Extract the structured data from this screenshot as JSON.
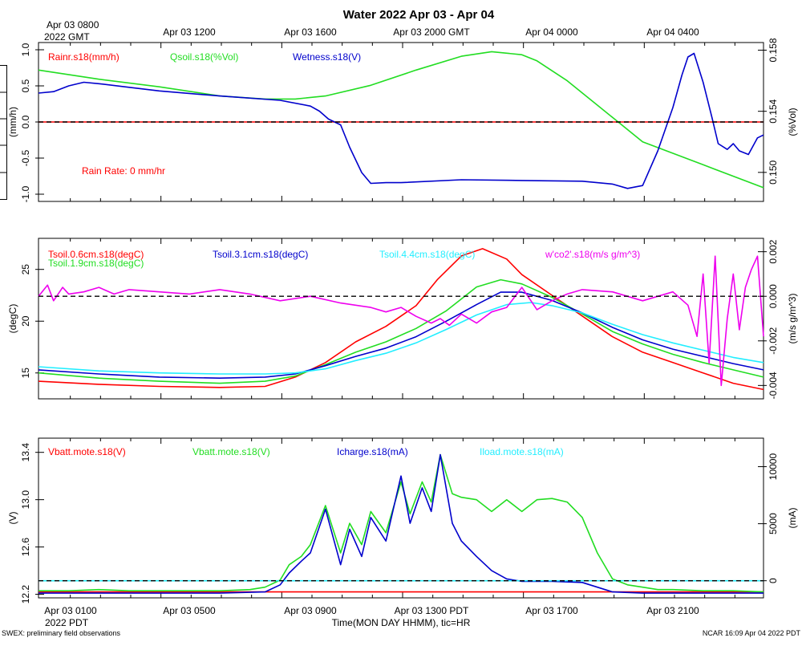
{
  "title": "Water 2022 Apr 03 - Apr 04",
  "top_axis": {
    "ticks": [
      "Apr 03 1200",
      "Apr 03 1600",
      "Apr 03 2000 GMT",
      "Apr 04 0000",
      "Apr 04 0400"
    ],
    "start_line1": "Apr 03 0800",
    "start_line2": "2022 GMT"
  },
  "bottom_axis": {
    "ticks": [
      "Apr 03 0500",
      "Apr 03 0900",
      "Apr 03 1300 PDT",
      "Apr 03 1700",
      "Apr 03 2100"
    ],
    "start_line1": "Apr 03 0100",
    "start_line2": "2022 PDT",
    "xlabel": "Time(MON DAY HHMM), tic=HR"
  },
  "footer": {
    "left": "SWEX: preliminary field observations",
    "right": "NCAR 16:09 Apr 04 2022 PDT"
  },
  "colors": {
    "red": "#ff0000",
    "green": "#22dd22",
    "blue": "#0000cc",
    "cyan": "#22eeff",
    "magenta": "#ee00ee"
  },
  "chart_data": [
    {
      "type": "line",
      "name": "rain-wetness-panel",
      "x_range_hours": [
        0,
        24
      ],
      "yleft": {
        "label": "(mm/h)",
        "range": [
          -1.1,
          1.1
        ],
        "ticks": [
          "1.0",
          "0.5",
          "0.0",
          "-0.5",
          "-1.0"
        ],
        "tick_values": [
          1.0,
          0.5,
          0.0,
          -0.5,
          -1.0
        ]
      },
      "yright": {
        "label": "(%Vol)",
        "range": [
          0.1481,
          0.1585
        ],
        "ticks": [
          "0.158",
          "0.154",
          "0.150"
        ],
        "tick_values": [
          0.158,
          0.154,
          0.15
        ]
      },
      "zero_line": 0,
      "annotation": "Rain Rate: 0 mm/hr",
      "series": [
        {
          "name": "Rainr.s18(mm/h)",
          "color": "red",
          "axis": "left",
          "x": [
            0,
            24
          ],
          "y": [
            0,
            0
          ]
        },
        {
          "name": "Qsoil.s18(%Vol)",
          "color": "green",
          "axis": "right",
          "x": [
            0,
            2,
            4,
            6,
            7.5,
            8.5,
            9.5,
            11,
            12.5,
            14,
            15,
            16,
            16.5,
            17.5,
            19,
            20,
            22,
            24
          ],
          "y": [
            0.1567,
            0.1561,
            0.1556,
            0.155,
            0.1548,
            0.1548,
            0.155,
            0.1557,
            0.1567,
            0.1576,
            0.1579,
            0.1577,
            0.1573,
            0.156,
            0.1536,
            0.152,
            0.1505,
            0.149
          ]
        },
        {
          "name": "Wetness.s18(V)",
          "color": "blue",
          "axis": "left",
          "x": [
            0,
            0.5,
            1,
            1.5,
            2,
            3,
            4,
            6,
            8,
            9,
            9.3,
            9.6,
            10,
            10.3,
            10.7,
            11,
            11.5,
            12,
            14,
            16,
            18,
            19,
            19.5,
            20,
            20.5,
            21,
            21.3,
            21.5,
            21.7,
            22,
            22.3,
            22.5,
            22.8,
            23,
            23.2,
            23.5,
            23.8,
            24
          ],
          "y": [
            0.4,
            0.42,
            0.5,
            0.55,
            0.53,
            0.48,
            0.43,
            0.36,
            0.3,
            0.22,
            0.15,
            0.04,
            -0.04,
            -0.35,
            -0.7,
            -0.85,
            -0.84,
            -0.84,
            -0.8,
            -0.81,
            -0.82,
            -0.86,
            -0.92,
            -0.88,
            -0.4,
            0.2,
            0.65,
            0.9,
            0.95,
            0.55,
            0.05,
            -0.3,
            -0.38,
            -0.3,
            -0.4,
            -0.45,
            -0.22,
            -0.18
          ]
        }
      ]
    },
    {
      "type": "line",
      "name": "soil-temperature-panel",
      "x_range_hours": [
        0,
        24
      ],
      "yleft": {
        "label": "(degC)",
        "range": [
          12.5,
          28.0
        ],
        "ticks": [
          "25",
          "20",
          "15"
        ],
        "tick_values": [
          25,
          20,
          15
        ]
      },
      "yright": {
        "label": "(m/s g/m^3)",
        "range": [
          -0.0046,
          0.0026
        ],
        "ticks": [
          "0.002",
          "0.000",
          "-0.002",
          "-0.004"
        ],
        "tick_values": [
          0.002,
          0.0,
          -0.002,
          -0.004
        ]
      },
      "zero_line": 0,
      "series": [
        {
          "name": "Tsoil.0.6cm.s18(degC)",
          "color": "red",
          "axis": "left",
          "x": [
            0,
            2,
            4,
            6,
            7.5,
            8.5,
            9.5,
            10.5,
            11.5,
            12.5,
            13.2,
            14,
            14.7,
            15.5,
            16,
            17,
            18,
            19,
            20,
            21,
            22,
            23,
            24
          ],
          "y": [
            14.2,
            13.9,
            13.7,
            13.6,
            13.7,
            14.6,
            16.0,
            18.0,
            19.5,
            21.5,
            24.0,
            26.3,
            27.0,
            26.0,
            24.5,
            22.5,
            20.5,
            18.5,
            17.0,
            16.0,
            15.0,
            14.0,
            13.4
          ]
        },
        {
          "name": "Tsoil.1.9cm.s18(degC)",
          "color": "green",
          "axis": "left",
          "x": [
            0,
            2,
            4,
            6,
            7.5,
            8.5,
            9.5,
            10.5,
            11.5,
            12.5,
            13.5,
            14.5,
            15.3,
            16,
            17,
            18,
            19,
            20,
            21,
            22,
            23,
            24
          ],
          "y": [
            15.0,
            14.5,
            14.2,
            14.0,
            14.2,
            14.7,
            15.8,
            17.0,
            18.0,
            19.3,
            21.0,
            23.3,
            24.0,
            23.6,
            22.3,
            20.7,
            19.0,
            17.8,
            16.8,
            16.0,
            15.3,
            14.6
          ]
        },
        {
          "name": "Tsoil.3.1cm.s18(degC)",
          "color": "blue",
          "axis": "left",
          "x": [
            0,
            2,
            4,
            6,
            7.5,
            8.5,
            9.5,
            10.5,
            11.5,
            12.5,
            13.5,
            14.5,
            15.3,
            16,
            17,
            18,
            19,
            20,
            21,
            22,
            23,
            24
          ],
          "y": [
            15.3,
            14.9,
            14.6,
            14.5,
            14.6,
            14.9,
            15.7,
            16.6,
            17.4,
            18.5,
            20.0,
            21.6,
            22.8,
            22.8,
            22.0,
            20.8,
            19.4,
            18.2,
            17.3,
            16.6,
            15.9,
            15.3
          ]
        },
        {
          "name": "Tsoil.4.4cm.s18(degC)",
          "color": "cyan",
          "axis": "left",
          "x": [
            0,
            2,
            4,
            6,
            7.5,
            8.5,
            9.5,
            10.5,
            11.5,
            12.5,
            13.5,
            14.5,
            15.5,
            16.3,
            17,
            18,
            19,
            20,
            21,
            22,
            23,
            24
          ],
          "y": [
            15.6,
            15.2,
            15.0,
            14.9,
            14.9,
            15.0,
            15.4,
            16.2,
            16.9,
            17.9,
            19.2,
            20.6,
            21.6,
            21.8,
            21.5,
            20.8,
            19.7,
            18.7,
            17.9,
            17.2,
            16.5,
            16.0
          ]
        },
        {
          "name": "w'co2'.s18(m/s g/m^3)",
          "color": "magenta",
          "axis": "right",
          "x": [
            0,
            0.3,
            0.5,
            0.8,
            1,
            1.5,
            2,
            2.5,
            3,
            4,
            5,
            6,
            7,
            8,
            9,
            10,
            11,
            11.5,
            12,
            12.5,
            13,
            13.3,
            13.6,
            14,
            14.5,
            15,
            15.5,
            16,
            16.5,
            17,
            17.5,
            18,
            19,
            20,
            21,
            21.5,
            21.8,
            22,
            22.2,
            22.4,
            22.6,
            22.8,
            23,
            23.2,
            23.4,
            23.6,
            23.8,
            24
          ],
          "y": [
            0.0,
            0.0005,
            -0.0002,
            0.0004,
            0.0001,
            0.0002,
            0.0004,
            0.0001,
            0.0003,
            0.0002,
            0.0001,
            0.0003,
            0.0001,
            -0.0002,
            0.0,
            -0.0003,
            -0.0005,
            -0.0007,
            -0.0005,
            -0.0009,
            -0.0012,
            -0.001,
            -0.0013,
            -0.0008,
            -0.0012,
            -0.0007,
            -0.0005,
            0.0004,
            -0.0006,
            -0.0002,
            0.0001,
            0.0003,
            0.0002,
            -0.0002,
            0.0002,
            -0.0004,
            -0.0018,
            0.001,
            -0.003,
            0.0018,
            -0.004,
            -0.001,
            0.001,
            -0.0015,
            0.0004,
            0.0012,
            0.0018,
            -0.0018
          ]
        }
      ]
    },
    {
      "type": "line",
      "name": "battery-power-panel",
      "x_range_hours": [
        0,
        24
      ],
      "yleft": {
        "label": "(V)",
        "range": [
          12.17,
          13.52
        ],
        "ticks": [
          "13.4",
          "13.0",
          "12.6",
          "12.2"
        ],
        "tick_values": [
          13.4,
          13.0,
          12.6,
          12.2
        ]
      },
      "yright": {
        "label": "(mA)",
        "range": [
          -1500,
          12500
        ],
        "ticks": [
          "10000",
          "5000",
          "0"
        ],
        "tick_values": [
          10000,
          5000,
          0
        ]
      },
      "zero_line": 0,
      "series": [
        {
          "name": "Vbatt.mote.s18(V)",
          "color": "red",
          "axis": "left",
          "x": [
            0,
            24
          ],
          "y": [
            12.22,
            12.22
          ]
        },
        {
          "name": "Vbatt.mote.s18(V)",
          "color": "green",
          "axis": "left",
          "x": [
            0,
            1,
            2,
            3,
            4,
            5,
            6,
            7,
            7.5,
            8,
            8.3,
            8.7,
            9,
            9.5,
            10,
            10.3,
            10.7,
            11,
            11.5,
            12,
            12.3,
            12.7,
            13,
            13.3,
            13.7,
            14,
            14.5,
            15,
            15.5,
            16,
            16.5,
            17,
            17.5,
            18,
            18.5,
            19,
            19.5,
            20,
            20.5,
            21,
            22,
            23,
            24
          ],
          "y": [
            12.23,
            12.23,
            12.24,
            12.23,
            12.23,
            12.23,
            12.23,
            12.24,
            12.26,
            12.32,
            12.45,
            12.52,
            12.62,
            12.95,
            12.55,
            12.8,
            12.62,
            12.9,
            12.72,
            13.15,
            12.88,
            13.15,
            12.98,
            13.38,
            13.05,
            13.02,
            13.0,
            12.9,
            13.0,
            12.9,
            13.0,
            13.01,
            12.98,
            12.85,
            12.55,
            12.33,
            12.28,
            12.26,
            12.24,
            12.24,
            12.23,
            12.23,
            12.22
          ]
        },
        {
          "name": "Icharge.s18(mA)",
          "color": "blue",
          "axis": "left",
          "x": [
            0,
            2,
            4,
            6,
            7.5,
            8,
            8.3,
            8.7,
            9,
            9.5,
            10,
            10.3,
            10.7,
            11,
            11.5,
            12,
            12.3,
            12.7,
            13,
            13.3,
            13.7,
            14,
            14.5,
            15,
            15.5,
            16,
            17,
            18,
            19,
            20,
            21,
            22,
            23,
            24
          ],
          "y": [
            12.21,
            12.21,
            12.21,
            12.21,
            12.22,
            12.28,
            12.38,
            12.48,
            12.55,
            12.92,
            12.45,
            12.75,
            12.52,
            12.85,
            12.65,
            13.2,
            12.8,
            13.1,
            12.9,
            13.38,
            12.8,
            12.65,
            12.52,
            12.4,
            12.33,
            12.31,
            12.31,
            12.3,
            12.22,
            12.21,
            12.21,
            12.21,
            12.21,
            12.21
          ]
        },
        {
          "name": "Iload.mote.s18(mA)",
          "color": "cyan",
          "axis": "right",
          "x": [
            0,
            24
          ],
          "y": [
            0,
            0
          ]
        }
      ]
    }
  ]
}
